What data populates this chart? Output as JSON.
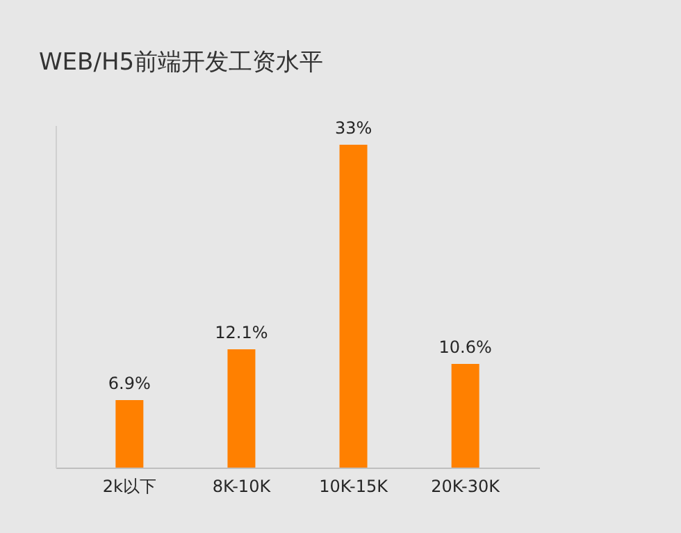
{
  "chart_data": {
    "type": "bar",
    "title": "WEB/H5前端开发工资水平",
    "categories": [
      "2k以下",
      "8K-10K",
      "10K-15K",
      "20K-30K"
    ],
    "values": [
      6.9,
      12.1,
      33,
      10.6
    ],
    "value_labels": [
      "6.9%",
      "12.1%",
      "33%",
      "10.6%"
    ],
    "color": "#ff8000",
    "grid": false
  }
}
